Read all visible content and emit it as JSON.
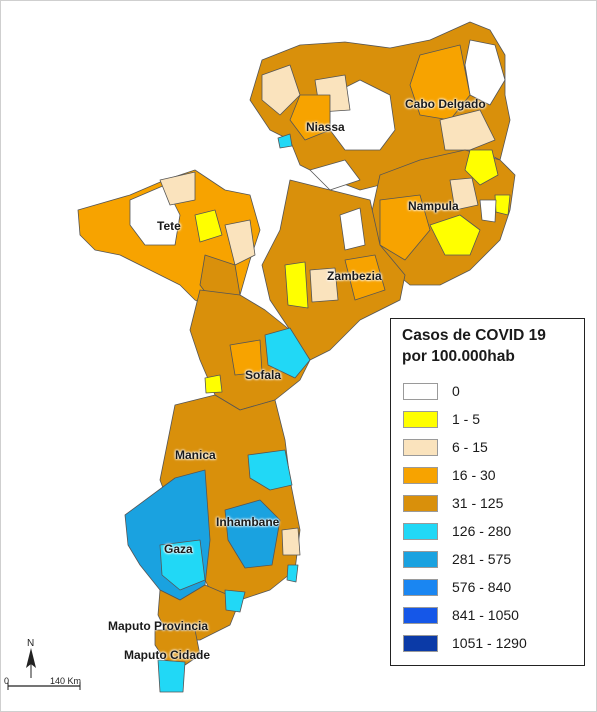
{
  "legend": {
    "title_line1": "Casos de COVID 19",
    "title_line2": "por 100.000hab",
    "classes": [
      {
        "label": "0",
        "color": "#ffffff"
      },
      {
        "label": "1 - 5",
        "color": "#ffff00"
      },
      {
        "label": "6 - 15",
        "color": "#fae3bd"
      },
      {
        "label": "16 - 30",
        "color": "#f7a300"
      },
      {
        "label": "31 - 125",
        "color": "#d9900b"
      },
      {
        "label": "126 - 280",
        "color": "#21d8f6"
      },
      {
        "label": "281 - 575",
        "color": "#1aa2e0"
      },
      {
        "label": "576 - 840",
        "color": "#1a86f2"
      },
      {
        "label": "841 - 1050",
        "color": "#1557e8"
      },
      {
        "label": "1051 - 1290",
        "color": "#0b3aa7"
      }
    ]
  },
  "provinces": {
    "cabo_delgado": "Cabo Delgado",
    "niassa": "Niassa",
    "nampula": "Nampula",
    "tete": "Tete",
    "zambezia": "Zambezia",
    "sofala": "Sofala",
    "manica": "Manica",
    "inhambane": "Inhambane",
    "gaza": "Gaza",
    "maputo_provincia": "Maputo Provincia",
    "maputo_cidade": "Maputo Cidade"
  },
  "scalebar": {
    "north": "N",
    "zero": "0",
    "distance": "140 Km"
  }
}
